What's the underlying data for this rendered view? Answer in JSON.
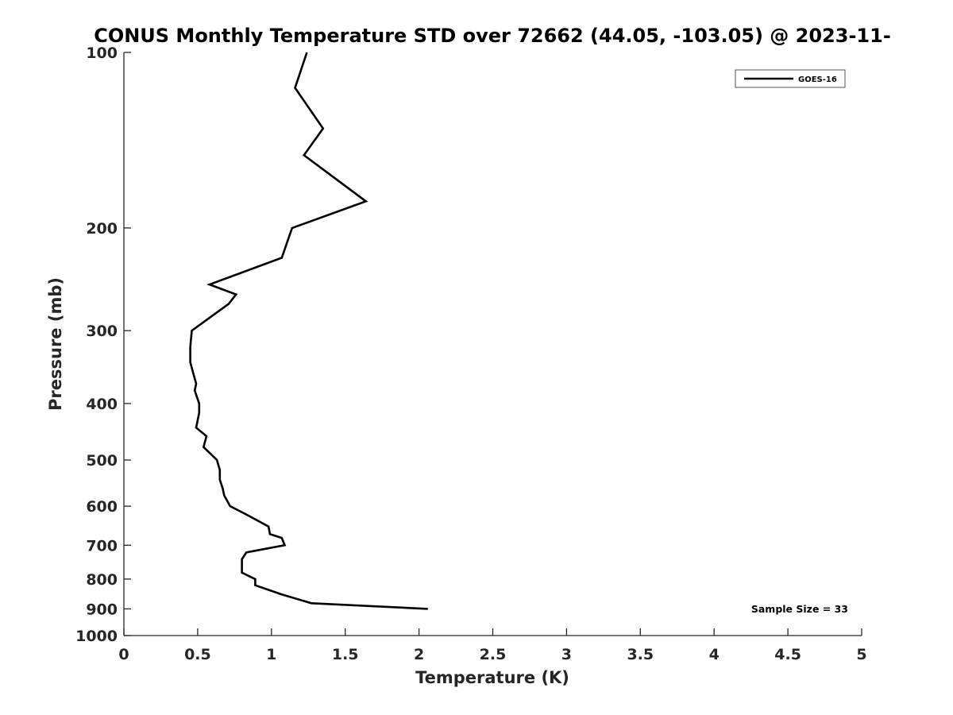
{
  "chart_data": {
    "type": "line",
    "title": "CONUS Monthly Temperature STD over 72662 (44.05, -103.05) @ 2023-11-",
    "xlabel": "Temperature (K)",
    "ylabel": "Pressure (mb)",
    "xlim": [
      0,
      5
    ],
    "ylim": [
      100,
      1000
    ],
    "y_scale": "log",
    "y_reversed": true,
    "x_ticks": [
      "0",
      "0.5",
      "1",
      "1.5",
      "2",
      "2.5",
      "3",
      "3.5",
      "4",
      "4.5",
      "5"
    ],
    "x_tick_values": [
      0,
      0.5,
      1,
      1.5,
      2,
      2.5,
      3,
      3.5,
      4,
      4.5,
      5
    ],
    "y_ticks": [
      "100",
      "200",
      "300",
      "400",
      "500",
      "600",
      "700",
      "800",
      "900",
      "1000"
    ],
    "y_tick_values": [
      100,
      200,
      300,
      400,
      500,
      600,
      700,
      800,
      900,
      1000
    ],
    "grid": false,
    "legend_position": "top-right",
    "annotation": "Sample Size = 33",
    "series": [
      {
        "name": "GOES-16",
        "color": "#000000",
        "x": [
          1.24,
          1.16,
          1.35,
          1.22,
          1.64,
          1.14,
          1.07,
          0.58,
          0.76,
          0.71,
          0.46,
          0.45,
          0.45,
          0.49,
          0.48,
          0.51,
          0.51,
          0.49,
          0.56,
          0.54,
          0.63,
          0.65,
          0.65,
          0.67,
          0.68,
          0.72,
          0.83,
          0.98,
          0.99,
          1.07,
          1.09,
          0.83,
          0.8,
          0.8,
          0.89,
          0.89,
          1.07,
          1.27,
          2.06
        ],
        "y": [
          100,
          115,
          135,
          150,
          180,
          200,
          225,
          250,
          260,
          270,
          300,
          320,
          340,
          370,
          380,
          400,
          415,
          440,
          455,
          475,
          500,
          520,
          540,
          560,
          575,
          600,
          620,
          650,
          670,
          680,
          700,
          720,
          740,
          780,
          800,
          820,
          850,
          880,
          900
        ]
      }
    ]
  }
}
